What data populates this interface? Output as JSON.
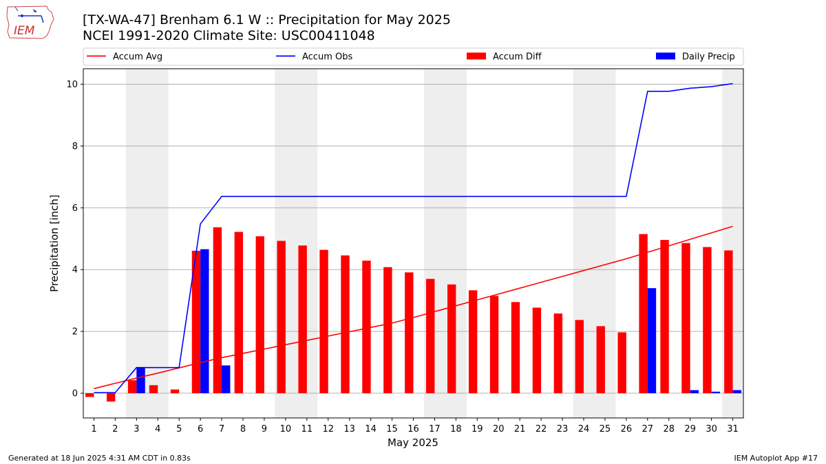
{
  "header": {
    "title_line1": "[TX-WA-47] Brenham 6.1 W :: Precipitation for May 2025",
    "title_line2": "NCEI 1991-2020 Climate Site: USC00411048"
  },
  "logo": {
    "text": "IEM",
    "icon": "iowa-state-outline-icon"
  },
  "footer": {
    "left": "Generated at 18 Jun 2025 4:31 AM CDT in 0.83s",
    "right": "IEM Autoplot App #17"
  },
  "colors": {
    "avg": "#ff0000",
    "obs": "#0000ff",
    "diff": "#ff0000",
    "daily": "#0000ff",
    "weekend": "#eeeeee",
    "grid": "#b0b0b0"
  },
  "chart_data": {
    "type": "bar",
    "xlabel": "May 2025",
    "ylabel": "Precipitation [inch]",
    "ylim": [
      -0.8,
      10.5
    ],
    "yticks": [
      0,
      2,
      4,
      6,
      8,
      10
    ],
    "days": [
      1,
      2,
      3,
      4,
      5,
      6,
      7,
      8,
      9,
      10,
      11,
      12,
      13,
      14,
      15,
      16,
      17,
      18,
      19,
      20,
      21,
      22,
      23,
      24,
      25,
      26,
      27,
      28,
      29,
      30,
      31
    ],
    "weekend_days": [
      3,
      4,
      10,
      11,
      17,
      18,
      24,
      25,
      31
    ],
    "legend": {
      "placement": "top",
      "items": [
        {
          "label": "Accum Avg",
          "kind": "line",
          "color": "#ff0000"
        },
        {
          "label": "Accum Obs",
          "kind": "line",
          "color": "#0000ff"
        },
        {
          "label": "Accum Diff",
          "kind": "bar",
          "color": "#ff0000"
        },
        {
          "label": "Daily Precip",
          "kind": "bar",
          "color": "#0000ff"
        }
      ]
    },
    "series": [
      {
        "name": "Accum Avg",
        "type": "line",
        "values": [
          0.15,
          0.32,
          0.49,
          0.65,
          0.82,
          0.99,
          1.15,
          1.29,
          1.43,
          1.57,
          1.71,
          1.85,
          1.99,
          2.13,
          2.27,
          2.45,
          2.64,
          2.83,
          3.02,
          3.21,
          3.4,
          3.59,
          3.78,
          3.97,
          4.16,
          4.35,
          4.56,
          4.77,
          4.98,
          5.19,
          5.4
        ]
      },
      {
        "name": "Accum Obs",
        "type": "line",
        "values": [
          0.02,
          0.02,
          0.83,
          0.83,
          0.83,
          5.48,
          6.37,
          6.37,
          6.37,
          6.37,
          6.37,
          6.37,
          6.37,
          6.37,
          6.37,
          6.37,
          6.37,
          6.37,
          6.37,
          6.37,
          6.37,
          6.37,
          6.37,
          6.37,
          6.37,
          6.37,
          9.77,
          9.77,
          9.87,
          9.92,
          10.02
        ]
      },
      {
        "name": "Accum Diff",
        "type": "bar",
        "values": [
          -0.12,
          -0.27,
          0.42,
          0.26,
          0.12,
          4.61,
          5.37,
          5.22,
          5.08,
          4.93,
          4.78,
          4.64,
          4.46,
          4.29,
          4.08,
          3.91,
          3.7,
          3.52,
          3.33,
          3.15,
          2.95,
          2.77,
          2.58,
          2.37,
          2.17,
          1.97,
          5.15,
          4.96,
          4.86,
          4.73,
          4.62
        ]
      },
      {
        "name": "Daily Precip",
        "type": "bar",
        "values": [
          0,
          0,
          0.82,
          0,
          0,
          4.66,
          0.9,
          0,
          0,
          0,
          0,
          0,
          0,
          0,
          0,
          0,
          0,
          0,
          0,
          0,
          0,
          0,
          0,
          0,
          0,
          0,
          3.4,
          0,
          0.1,
          0.05,
          0.1
        ]
      }
    ]
  }
}
